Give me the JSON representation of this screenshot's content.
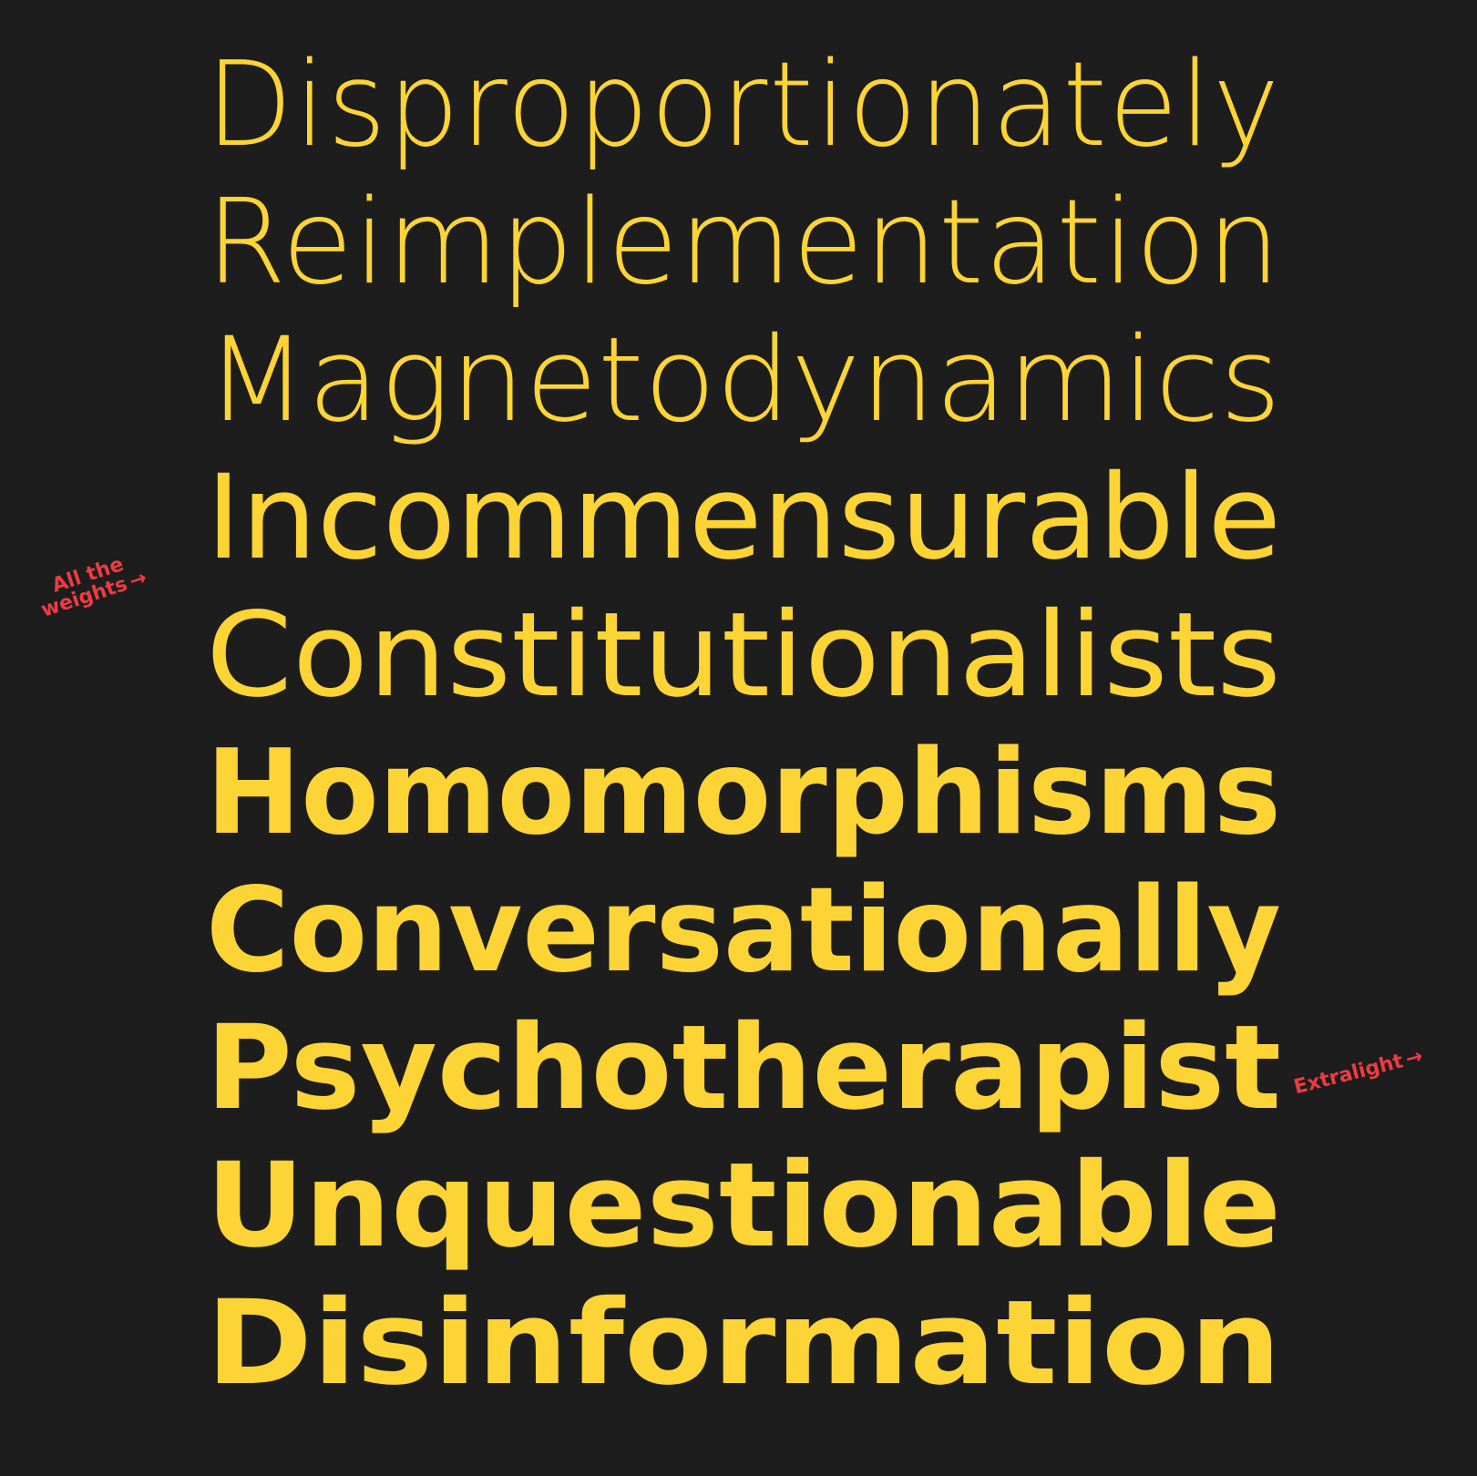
{
  "colors": {
    "background": "#1d1d1d",
    "text": "#fdd435",
    "annotation": "#ef3b42"
  },
  "words": [
    "Disproportionately",
    "Reimplementation",
    "Magnetodynamics",
    "Incommensurable",
    "Constitutionalists",
    "Homomorphisms",
    "Conversationally",
    "Psychotherapist",
    "Unquestionable",
    "Disinformation"
  ],
  "annotations": {
    "left_line1": "All the",
    "left_line2": "weights",
    "right": "Extralight",
    "arrow_icon": "arrow-right-icon"
  }
}
